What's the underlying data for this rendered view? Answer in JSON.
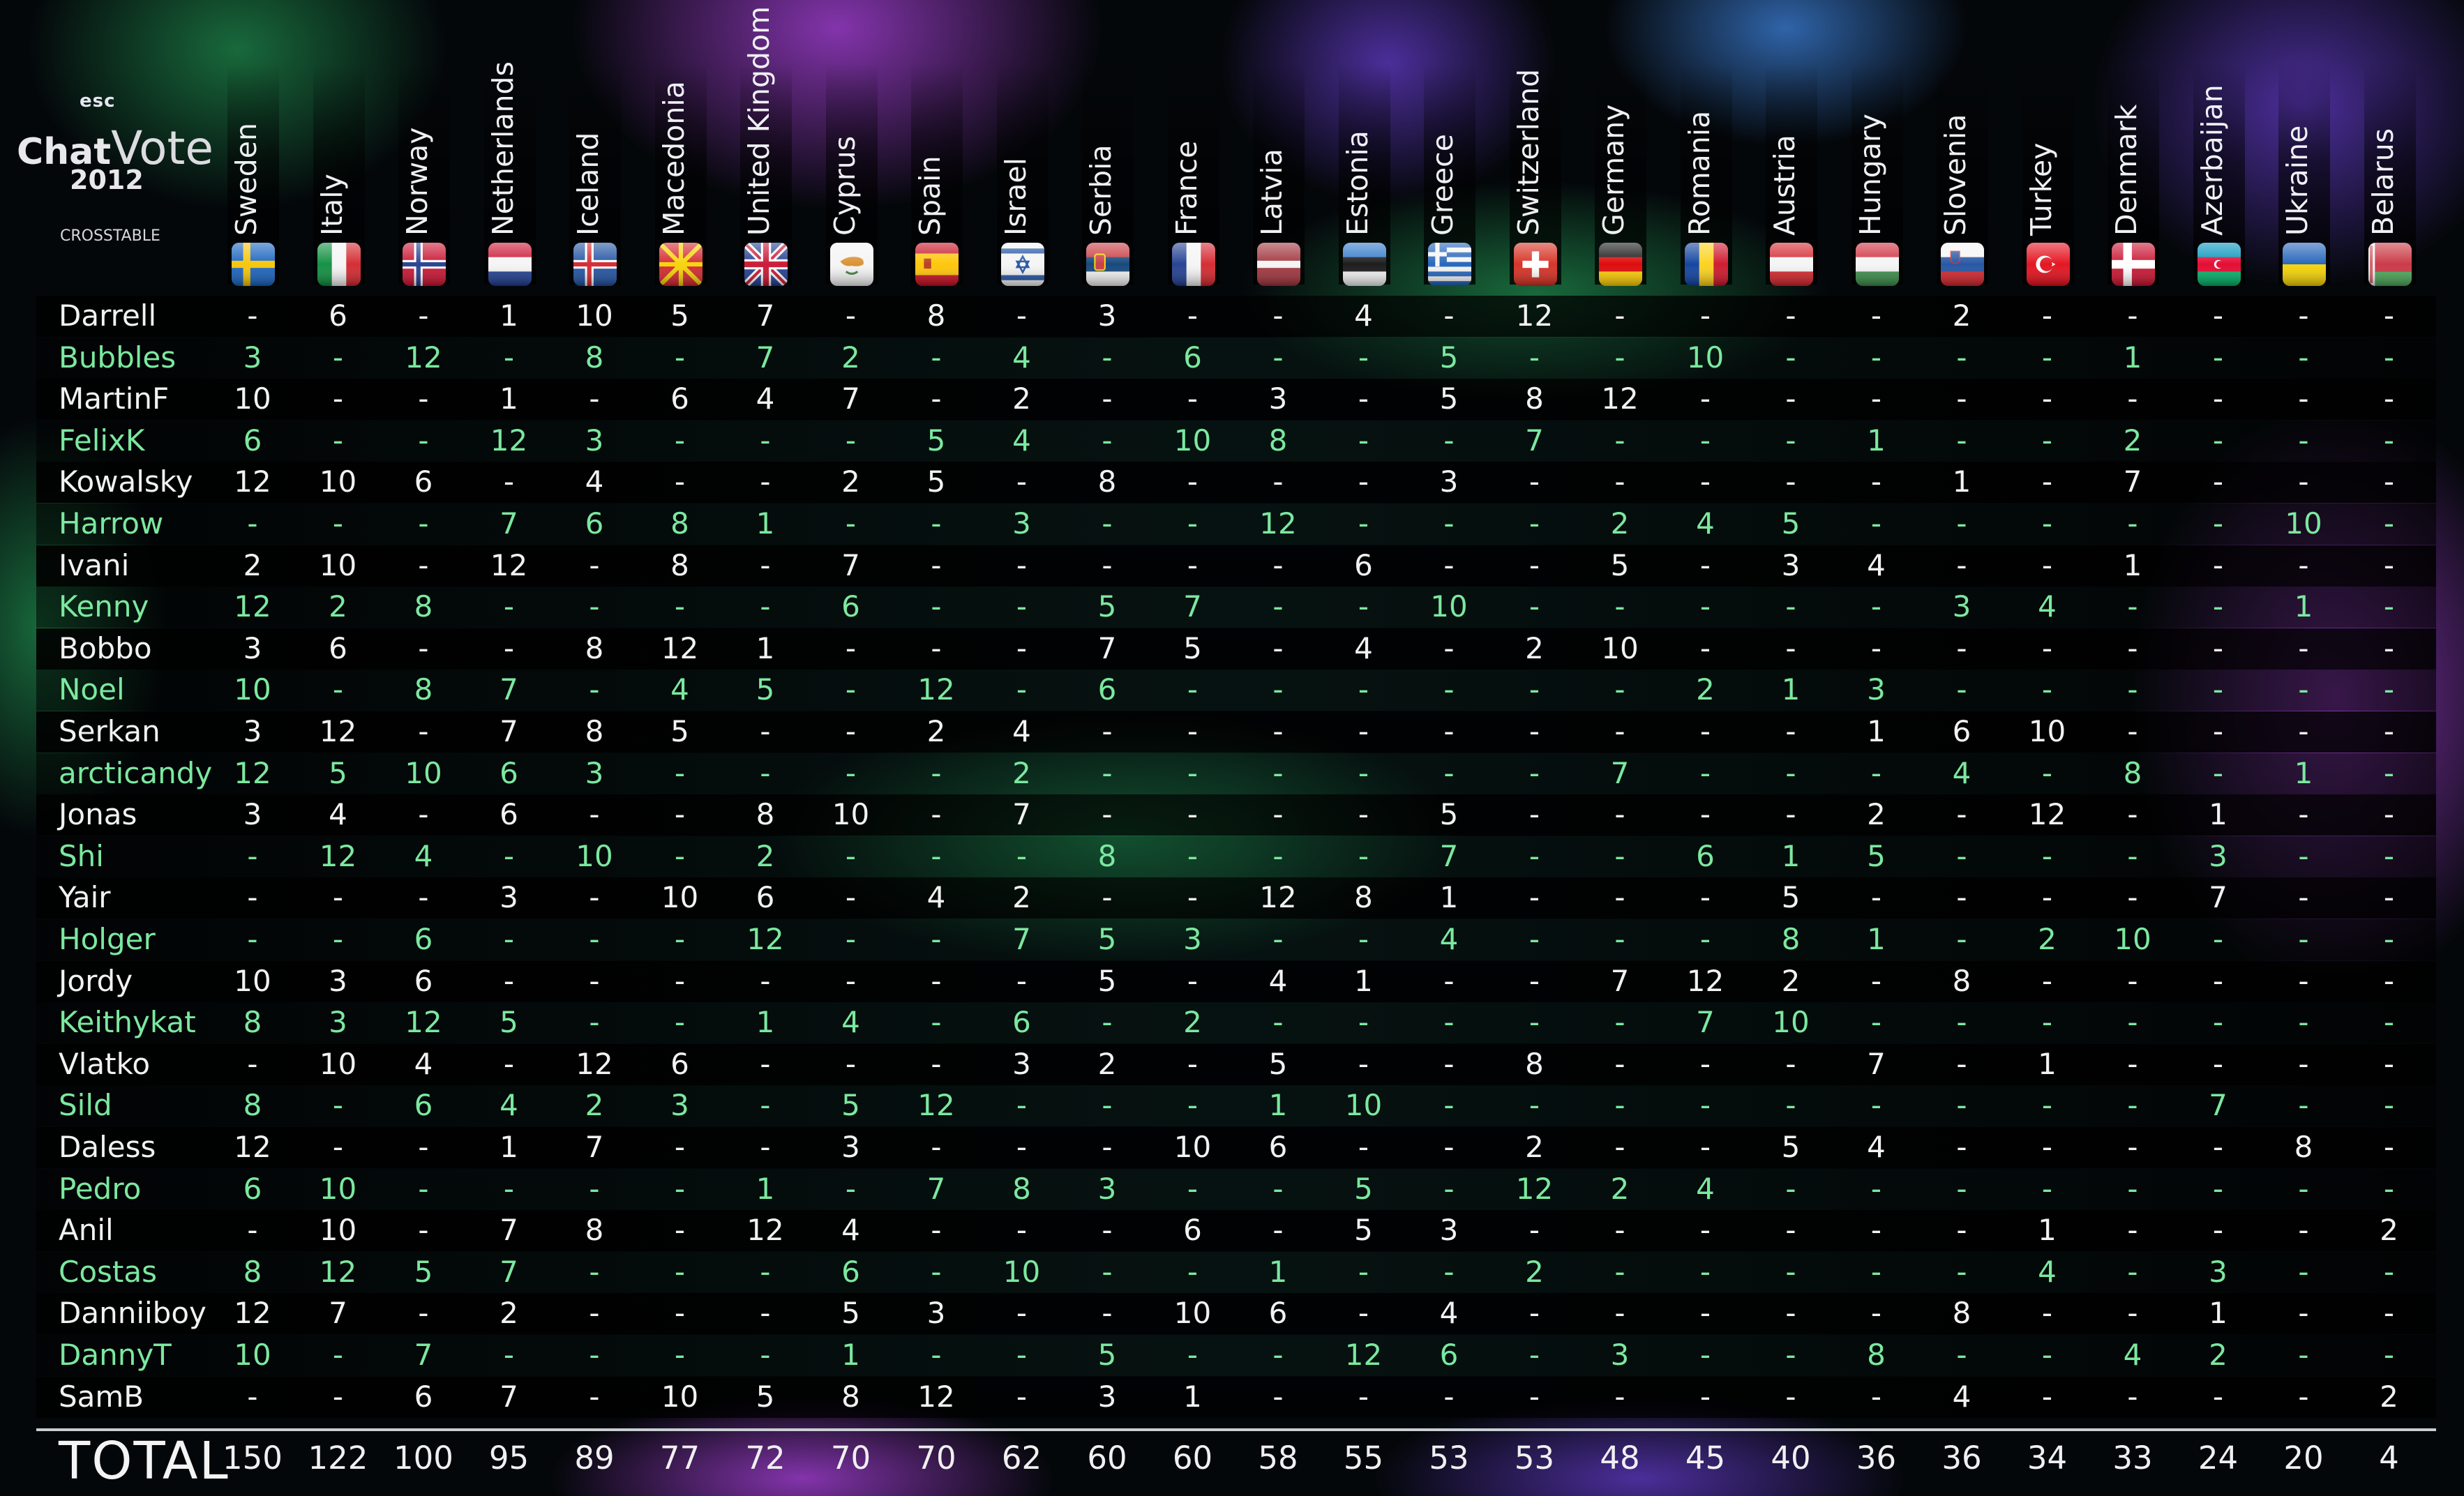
{
  "logo": {
    "brand": "esc",
    "title_part1": "Chat",
    "title_part2": "Vote",
    "year": "2012",
    "subtitle": "CROSSTABLE"
  },
  "columns": [
    {
      "name": "Sweden",
      "flag": "se",
      "total": "150"
    },
    {
      "name": "Italy",
      "flag": "it",
      "total": "122"
    },
    {
      "name": "Norway",
      "flag": "no",
      "total": "100"
    },
    {
      "name": "Netherlands",
      "flag": "nl",
      "total": "95"
    },
    {
      "name": "Iceland",
      "flag": "is",
      "total": "89"
    },
    {
      "name": "Macedonia",
      "flag": "mk",
      "total": "77"
    },
    {
      "name": "United Kingdom",
      "flag": "gb",
      "total": "72"
    },
    {
      "name": "Cyprus",
      "flag": "cy",
      "total": "70"
    },
    {
      "name": "Spain",
      "flag": "es",
      "total": "70"
    },
    {
      "name": "Israel",
      "flag": "il",
      "total": "62"
    },
    {
      "name": "Serbia",
      "flag": "rs",
      "total": "60"
    },
    {
      "name": "France",
      "flag": "fr",
      "total": "60"
    },
    {
      "name": "Latvia",
      "flag": "lv",
      "total": "58"
    },
    {
      "name": "Estonia",
      "flag": "ee",
      "total": "55"
    },
    {
      "name": "Greece",
      "flag": "gr",
      "total": "53"
    },
    {
      "name": "Switzerland",
      "flag": "ch",
      "total": "53"
    },
    {
      "name": "Germany",
      "flag": "de",
      "total": "48"
    },
    {
      "name": "Romania",
      "flag": "ro",
      "total": "45"
    },
    {
      "name": "Austria",
      "flag": "at",
      "total": "40"
    },
    {
      "name": "Hungary",
      "flag": "hu",
      "total": "36"
    },
    {
      "name": "Slovenia",
      "flag": "si",
      "total": "36"
    },
    {
      "name": "Turkey",
      "flag": "tr",
      "total": "34"
    },
    {
      "name": "Denmark",
      "flag": "dk",
      "total": "33"
    },
    {
      "name": "Azerbaijan",
      "flag": "az",
      "total": "24"
    },
    {
      "name": "Ukraine",
      "flag": "ua",
      "total": "20"
    },
    {
      "name": "Belarus",
      "flag": "by",
      "total": "4"
    }
  ],
  "rows": [
    {
      "voter": "Darrell",
      "scores": [
        "-",
        "6",
        "-",
        "1",
        "10",
        "5",
        "7",
        "-",
        "8",
        "-",
        "3",
        "-",
        "-",
        "4",
        "-",
        "12",
        "-",
        "-",
        "-",
        "-",
        "2",
        "-",
        "-",
        "-",
        "-",
        "-"
      ]
    },
    {
      "voter": "Bubbles",
      "scores": [
        "3",
        "-",
        "12",
        "-",
        "8",
        "-",
        "7",
        "2",
        "-",
        "4",
        "-",
        "6",
        "-",
        "-",
        "5",
        "-",
        "-",
        "10",
        "-",
        "-",
        "-",
        "-",
        "1",
        "-",
        "-",
        "-"
      ]
    },
    {
      "voter": "MartinF",
      "scores": [
        "10",
        "-",
        "-",
        "1",
        "-",
        "6",
        "4",
        "7",
        "-",
        "2",
        "-",
        "-",
        "3",
        "-",
        "5",
        "8",
        "12",
        "-",
        "-",
        "-",
        "-",
        "-",
        "-",
        "-",
        "-",
        "-"
      ]
    },
    {
      "voter": "FelixK",
      "scores": [
        "6",
        "-",
        "-",
        "12",
        "3",
        "-",
        "-",
        "-",
        "5",
        "4",
        "-",
        "10",
        "8",
        "-",
        "-",
        "7",
        "-",
        "-",
        "-",
        "1",
        "-",
        "-",
        "2",
        "-",
        "-",
        "-"
      ]
    },
    {
      "voter": "Kowalsky",
      "scores": [
        "12",
        "10",
        "6",
        "-",
        "4",
        "-",
        "-",
        "2",
        "5",
        "-",
        "8",
        "-",
        "-",
        "-",
        "3",
        "-",
        "-",
        "-",
        "-",
        "-",
        "1",
        "-",
        "7",
        "-",
        "-",
        "-"
      ]
    },
    {
      "voter": "Harrow",
      "scores": [
        "-",
        "-",
        "-",
        "7",
        "6",
        "8",
        "1",
        "-",
        "-",
        "3",
        "-",
        "-",
        "12",
        "-",
        "-",
        "-",
        "2",
        "4",
        "5",
        "-",
        "-",
        "-",
        "-",
        "-",
        "10",
        "-"
      ]
    },
    {
      "voter": "Ivani",
      "scores": [
        "2",
        "10",
        "-",
        "12",
        "-",
        "8",
        "-",
        "7",
        "-",
        "-",
        "-",
        "-",
        "-",
        "6",
        "-",
        "-",
        "5",
        "-",
        "3",
        "4",
        "-",
        "-",
        "1",
        "-",
        "-",
        "-"
      ]
    },
    {
      "voter": "Kenny",
      "scores": [
        "12",
        "2",
        "8",
        "-",
        "-",
        "-",
        "-",
        "6",
        "-",
        "-",
        "5",
        "7",
        "-",
        "-",
        "10",
        "-",
        "-",
        "-",
        "-",
        "-",
        "3",
        "4",
        "-",
        "-",
        "1",
        "-"
      ]
    },
    {
      "voter": "Bobbo",
      "scores": [
        "3",
        "6",
        "-",
        "-",
        "8",
        "12",
        "1",
        "-",
        "-",
        "-",
        "7",
        "5",
        "-",
        "4",
        "-",
        "2",
        "10",
        "-",
        "-",
        "-",
        "-",
        "-",
        "-",
        "-",
        "-",
        "-"
      ]
    },
    {
      "voter": "Noel",
      "scores": [
        "10",
        "-",
        "8",
        "7",
        "-",
        "4",
        "5",
        "-",
        "12",
        "-",
        "6",
        "-",
        "-",
        "-",
        "-",
        "-",
        "-",
        "2",
        "1",
        "3",
        "-",
        "-",
        "-",
        "-",
        "-",
        "-"
      ]
    },
    {
      "voter": "Serkan",
      "scores": [
        "3",
        "12",
        "-",
        "7",
        "8",
        "5",
        "-",
        "-",
        "2",
        "4",
        "-",
        "-",
        "-",
        "-",
        "-",
        "-",
        "-",
        "-",
        "-",
        "1",
        "6",
        "10",
        "-",
        "-",
        "-",
        "-"
      ]
    },
    {
      "voter": "arcticandy",
      "scores": [
        "12",
        "5",
        "10",
        "6",
        "3",
        "-",
        "-",
        "-",
        "-",
        "2",
        "-",
        "-",
        "-",
        "-",
        "-",
        "-",
        "7",
        "-",
        "-",
        "-",
        "4",
        "-",
        "8",
        "-",
        "1",
        "-"
      ]
    },
    {
      "voter": "Jonas",
      "scores": [
        "3",
        "4",
        "-",
        "6",
        "-",
        "-",
        "8",
        "10",
        "-",
        "7",
        "-",
        "-",
        "-",
        "-",
        "5",
        "-",
        "-",
        "-",
        "-",
        "2",
        "-",
        "12",
        "-",
        "1",
        "-",
        "-"
      ]
    },
    {
      "voter": "Shi",
      "scores": [
        "-",
        "12",
        "4",
        "-",
        "10",
        "-",
        "2",
        "-",
        "-",
        "-",
        "8",
        "-",
        "-",
        "-",
        "7",
        "-",
        "-",
        "6",
        "1",
        "5",
        "-",
        "-",
        "-",
        "3",
        "-",
        "-"
      ]
    },
    {
      "voter": "Yair",
      "scores": [
        "-",
        "-",
        "-",
        "3",
        "-",
        "10",
        "6",
        "-",
        "4",
        "2",
        "-",
        "-",
        "12",
        "8",
        "1",
        "-",
        "-",
        "-",
        "5",
        "-",
        "-",
        "-",
        "-",
        "7",
        "-",
        "-"
      ]
    },
    {
      "voter": "Holger",
      "scores": [
        "-",
        "-",
        "6",
        "-",
        "-",
        "-",
        "12",
        "-",
        "-",
        "7",
        "5",
        "3",
        "-",
        "-",
        "4",
        "-",
        "-",
        "-",
        "8",
        "1",
        "-",
        "2",
        "10",
        "-",
        "-",
        "-"
      ]
    },
    {
      "voter": "Jordy",
      "scores": [
        "10",
        "3",
        "6",
        "-",
        "-",
        "-",
        "-",
        "-",
        "-",
        "-",
        "5",
        "-",
        "4",
        "1",
        "-",
        "-",
        "7",
        "12",
        "2",
        "-",
        "8",
        "-",
        "-",
        "-",
        "-",
        "-"
      ]
    },
    {
      "voter": "Keithykat",
      "scores": [
        "8",
        "3",
        "12",
        "5",
        "-",
        "-",
        "1",
        "4",
        "-",
        "6",
        "-",
        "2",
        "-",
        "-",
        "-",
        "-",
        "-",
        "7",
        "10",
        "-",
        "-",
        "-",
        "-",
        "-",
        "-",
        "-"
      ]
    },
    {
      "voter": "Vlatko",
      "scores": [
        "-",
        "10",
        "4",
        "-",
        "12",
        "6",
        "-",
        "-",
        "-",
        "3",
        "2",
        "-",
        "5",
        "-",
        "-",
        "8",
        "-",
        "-",
        "-",
        "7",
        "-",
        "1",
        "-",
        "-",
        "-",
        "-"
      ]
    },
    {
      "voter": "Sild",
      "scores": [
        "8",
        "-",
        "6",
        "4",
        "2",
        "3",
        "-",
        "5",
        "12",
        "-",
        "-",
        "-",
        "1",
        "10",
        "-",
        "-",
        "-",
        "-",
        "-",
        "-",
        "-",
        "-",
        "-",
        "7",
        "-",
        "-"
      ]
    },
    {
      "voter": "Daless",
      "scores": [
        "12",
        "-",
        "-",
        "1",
        "7",
        "-",
        "-",
        "3",
        "-",
        "-",
        "-",
        "10",
        "6",
        "-",
        "-",
        "2",
        "-",
        "-",
        "5",
        "4",
        "-",
        "-",
        "-",
        "-",
        "8",
        "-"
      ]
    },
    {
      "voter": "Pedro",
      "scores": [
        "6",
        "10",
        "-",
        "-",
        "-",
        "-",
        "1",
        "-",
        "7",
        "8",
        "3",
        "-",
        "-",
        "5",
        "-",
        "12",
        "2",
        "4",
        "-",
        "-",
        "-",
        "-",
        "-",
        "-",
        "-",
        "-"
      ]
    },
    {
      "voter": "Anil",
      "scores": [
        "-",
        "10",
        "-",
        "7",
        "8",
        "-",
        "12",
        "4",
        "-",
        "-",
        "-",
        "6",
        "-",
        "5",
        "3",
        "-",
        "-",
        "-",
        "-",
        "-",
        "-",
        "1",
        "-",
        "-",
        "-",
        "2"
      ]
    },
    {
      "voter": "Costas",
      "scores": [
        "8",
        "12",
        "5",
        "7",
        "-",
        "-",
        "-",
        "6",
        "-",
        "10",
        "-",
        "-",
        "1",
        "-",
        "-",
        "2",
        "-",
        "-",
        "-",
        "-",
        "-",
        "4",
        "-",
        "3",
        "-",
        "-"
      ]
    },
    {
      "voter": "Danniiboy",
      "scores": [
        "12",
        "7",
        "-",
        "2",
        "-",
        "-",
        "-",
        "5",
        "3",
        "-",
        "-",
        "10",
        "6",
        "-",
        "4",
        "-",
        "-",
        "-",
        "-",
        "-",
        "8",
        "-",
        "-",
        "1",
        "-",
        "-"
      ]
    },
    {
      "voter": "DannyT",
      "scores": [
        "10",
        "-",
        "7",
        "-",
        "-",
        "-",
        "-",
        "1",
        "-",
        "-",
        "5",
        "-",
        "-",
        "12",
        "6",
        "-",
        "3",
        "-",
        "-",
        "8",
        "-",
        "-",
        "4",
        "2",
        "-",
        "-"
      ]
    },
    {
      "voter": "SamB",
      "scores": [
        "-",
        "-",
        "6",
        "7",
        "-",
        "10",
        "5",
        "8",
        "12",
        "-",
        "3",
        "1",
        "-",
        "-",
        "-",
        "-",
        "-",
        "-",
        "-",
        "-",
        "4",
        "-",
        "-",
        "-",
        "-",
        "2"
      ]
    }
  ],
  "total_label": "TOTAL",
  "colors": {
    "odd_row_text": "#f2f2f2",
    "even_row_text": "#7be89f",
    "background": "#04070a"
  }
}
